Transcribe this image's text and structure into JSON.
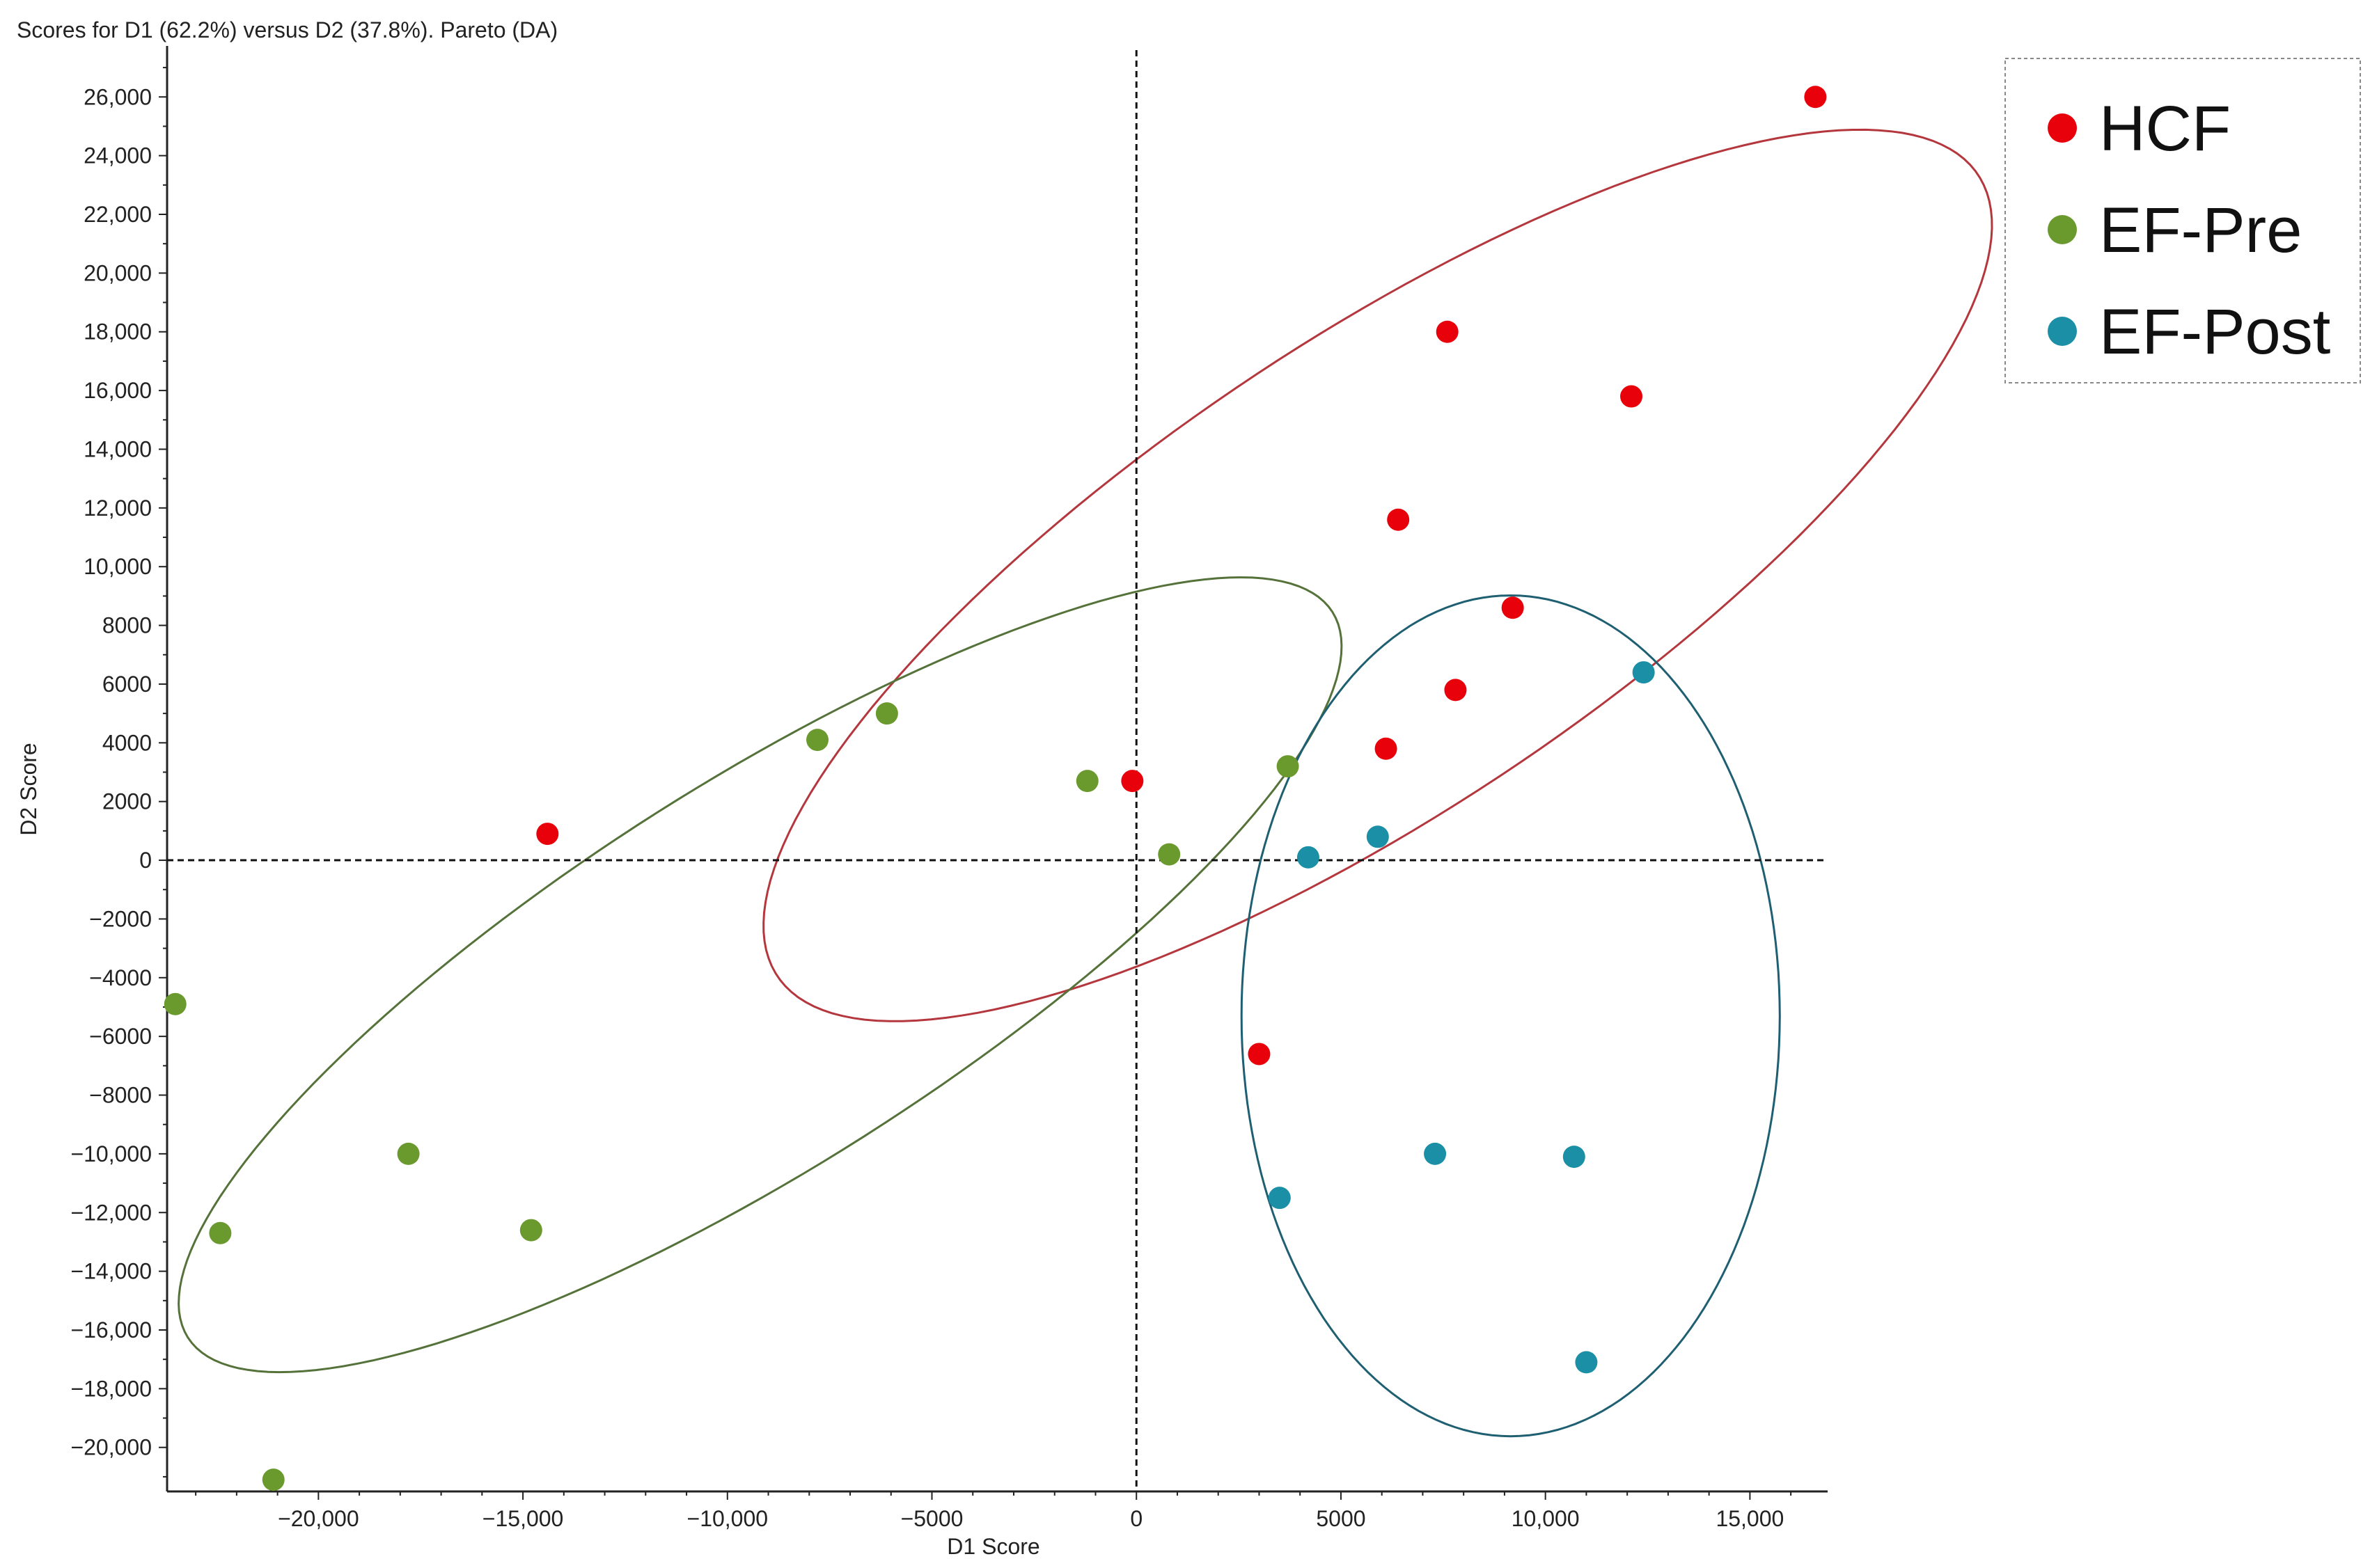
{
  "chart_data": {
    "type": "scatter",
    "title": "Scores for D1 (62.2%) versus D2 (37.8%). Pareto (DA)",
    "xlabel": "D1 Score",
    "ylabel": "D2 Score",
    "xlim": [
      -23700,
      16900
    ],
    "ylim": [
      -21500,
      27500
    ],
    "xticks": [
      -20000,
      -15000,
      -10000,
      -5000,
      0,
      5000,
      10000,
      15000
    ],
    "xtick_labels": [
      "−20,000",
      "−15,000",
      "−10,000",
      "−5000",
      "0",
      "5000",
      "10,000",
      "15,000"
    ],
    "yticks": [
      -20000,
      -18000,
      -16000,
      -14000,
      -12000,
      -10000,
      -8000,
      -6000,
      -4000,
      -2000,
      0,
      2000,
      4000,
      6000,
      8000,
      10000,
      12000,
      14000,
      16000,
      18000,
      20000,
      22000,
      24000,
      26000
    ],
    "ytick_labels": [
      "−20,000",
      "−18,000",
      "−16,000",
      "−14,000",
      "−12,000",
      "−10,000",
      "−8000",
      "−6000",
      "−4000",
      "−2000",
      "0",
      "2000",
      "4000",
      "6000",
      "8000",
      "10,000",
      "12,000",
      "14,000",
      "16,000",
      "18,000",
      "20,000",
      "22,000",
      "24,000",
      "26,000"
    ],
    "grid": false,
    "legend_position": "top-right",
    "series": [
      {
        "name": "HCF",
        "color": "#e8000b",
        "points": [
          [
            16600,
            26000
          ],
          [
            7600,
            18000
          ],
          [
            12100,
            15800
          ],
          [
            6400,
            11600
          ],
          [
            9200,
            8600
          ],
          [
            7800,
            5800
          ],
          [
            6100,
            3800
          ],
          [
            -100,
            2700
          ],
          [
            -14400,
            900
          ],
          [
            3000,
            -6600
          ]
        ]
      },
      {
        "name": "EF-Pre",
        "color": "#6a9a2e",
        "points": [
          [
            -6100,
            5000
          ],
          [
            -7800,
            4100
          ],
          [
            -1200,
            2700
          ],
          [
            3700,
            3200
          ],
          [
            800,
            200
          ],
          [
            -23500,
            -4900
          ],
          [
            -17800,
            -10000
          ],
          [
            -22400,
            -12700
          ],
          [
            -14800,
            -12600
          ],
          [
            -21100,
            -21100
          ]
        ]
      },
      {
        "name": "EF-Post",
        "color": "#1a8fa6",
        "points": [
          [
            12400,
            6400
          ],
          [
            5900,
            800
          ],
          [
            4200,
            100
          ],
          [
            7300,
            -10000
          ],
          [
            10700,
            -10100
          ],
          [
            3500,
            -11500
          ],
          [
            11000,
            -17100
          ]
        ]
      }
    ],
    "ellipses": [
      {
        "series": "HCF",
        "color": "#b5373e",
        "center": [
          5900,
          9700
        ],
        "rx": 20180,
        "ry": 6990,
        "rotation_deg": 45.4
      },
      {
        "series": "EF-Pre",
        "color": "#55723a",
        "center": [
          -9200,
          -3900
        ],
        "rx": 18760,
        "ry": 5780,
        "rotation_deg": 43.3
      },
      {
        "series": "EF-Post",
        "color": "#1f5f72",
        "center": [
          9150,
          -5300
        ],
        "rx": 6580,
        "ry": 14320,
        "rotation_deg": 0
      }
    ]
  }
}
